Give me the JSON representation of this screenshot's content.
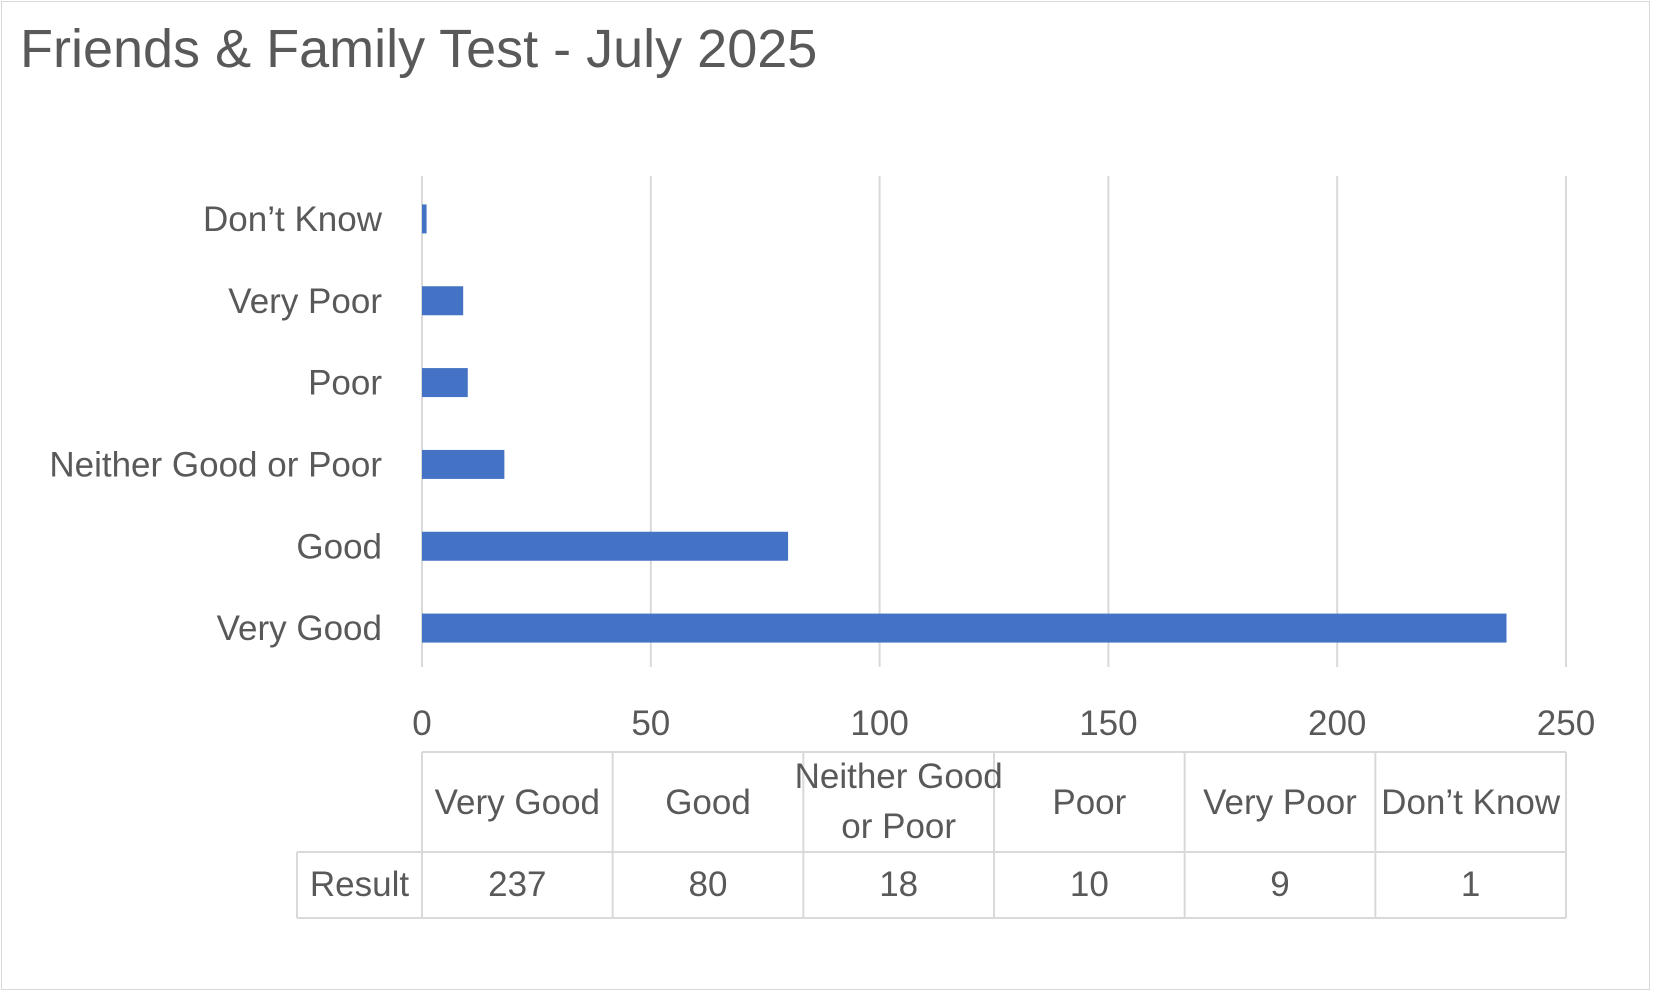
{
  "chart_data": {
    "type": "bar",
    "orientation": "horizontal",
    "title": "Friends & Family Test - July 2025",
    "categories": [
      "Very Good",
      "Good",
      "Neither Good or Poor",
      "Poor",
      "Very Poor",
      "Don’t Know"
    ],
    "series": [
      {
        "name": "Result",
        "values": [
          237,
          80,
          18,
          10,
          9,
          1
        ],
        "color": "#4472c4"
      }
    ],
    "xlim": [
      0,
      250
    ],
    "xticks": [
      "0",
      "50",
      "100",
      "150",
      "200",
      "250"
    ],
    "grid": true,
    "data_table": {
      "headers": [
        "Very Good",
        "Good",
        "Neither Good or Poor",
        "Poor",
        "Very Poor",
        "Don’t Know"
      ],
      "row_label": "Result",
      "values": [
        "237",
        "80",
        "18",
        "10",
        "9",
        "1"
      ]
    }
  }
}
